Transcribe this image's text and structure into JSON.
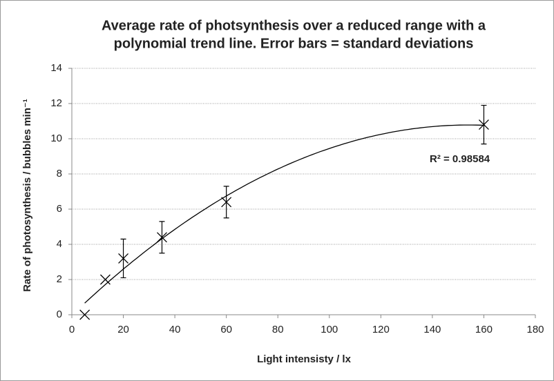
{
  "chart_data": {
    "type": "scatter",
    "title": [
      "Average rate of photsynthesis over a reduced range with a",
      "polynomial trend line. Error bars = standard deviations"
    ],
    "x_label": "Light intensisty / lx",
    "y_label": "Rate of photosynthesis / bubbles min⁻¹",
    "x": [
      5,
      13,
      20,
      35,
      60,
      160
    ],
    "series": [
      {
        "color": "#000000",
        "values": [
          0,
          2,
          3.2,
          4.4,
          6.4,
          10.8
        ],
        "errors": [
          null,
          null,
          1.1,
          0.9,
          0.9,
          1.1
        ]
      }
    ],
    "trendline": "polynomial",
    "annotation": "R² = 0.98584",
    "xlim": [
      0,
      180
    ],
    "xticks": [
      0,
      20,
      40,
      60,
      80,
      100,
      120,
      140,
      160,
      180
    ],
    "ylim": [
      0,
      14
    ],
    "yticks": [
      0,
      2,
      4,
      6,
      8,
      10,
      12,
      14
    ],
    "grid": true
  }
}
